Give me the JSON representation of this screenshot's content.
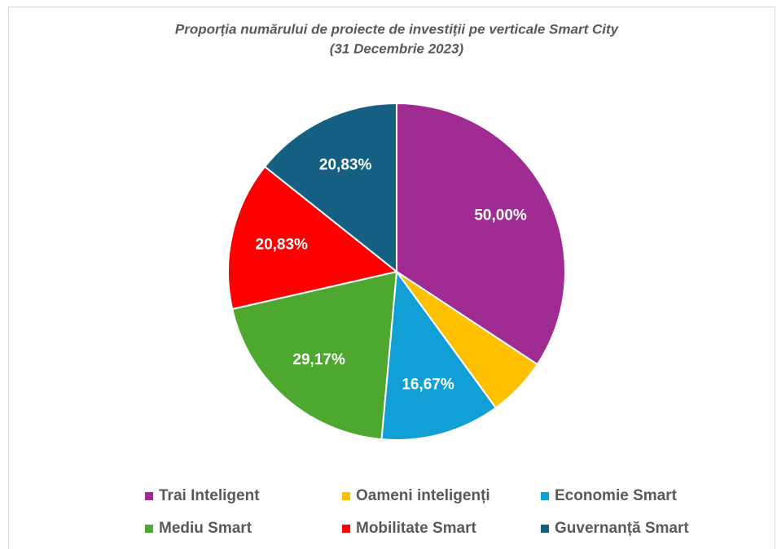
{
  "chart_data": {
    "type": "pie",
    "title": "Proporția numărului de proiecte de investiții pe verticale Smart City",
    "subtitle": "(31 Decembrie 2023)",
    "categories": [
      "Trai Inteligent",
      "Oameni inteligenți",
      "Economie Smart",
      "Mediu Smart",
      "Mobilitate Smart",
      "Guvernanță Smart"
    ],
    "values": [
      50,
      8.33,
      16.67,
      29.17,
      20.83,
      20.83
    ],
    "value_labels": [
      "50,00%",
      null,
      "16,67%",
      "29,17%",
      "20,83%",
      "20,83%"
    ],
    "colors": [
      "#a02b93",
      "#ffc000",
      "#119fd6",
      "#4ea72e",
      "#ff0000",
      "#156082"
    ],
    "legend": "bottom"
  }
}
